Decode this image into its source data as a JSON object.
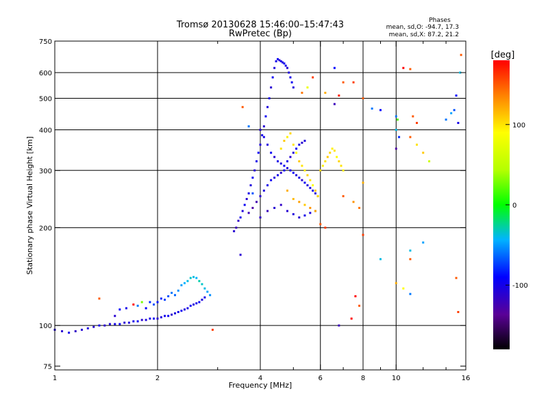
{
  "chart_data": {
    "type": "scatter",
    "title": "Tromsø 20130628 15:46:00–15:47:43",
    "subtitle": "RwPretec (Bp)",
    "phases": {
      "heading": "Phases",
      "line_o": "mean, sd,O: -94.7, 17.3",
      "line_x": "mean, sd,X:  87.2, 21.2"
    },
    "xlabel": "Frequency [MHz]",
    "ylabel": "Stationary phase Virtual Height [km]",
    "xscale": "log",
    "yscale": "log",
    "xlim": [
      1,
      16
    ],
    "ylim": [
      73,
      750
    ],
    "x_ticks": [
      {
        "value": 1,
        "label": "1"
      },
      {
        "value": 2,
        "label": "2"
      },
      {
        "value": 4,
        "label": "4"
      },
      {
        "value": 6,
        "label": "6"
      },
      {
        "value": 8,
        "label": "8"
      },
      {
        "value": 10,
        "label": "10"
      },
      {
        "value": 16,
        "label": "16"
      }
    ],
    "x_grid": [
      2,
      4,
      6,
      8,
      10
    ],
    "y_ticks": [
      {
        "value": 75,
        "label": "75"
      },
      {
        "value": 100,
        "label": "100"
      },
      {
        "value": 200,
        "label": "200"
      },
      {
        "value": 300,
        "label": "300"
      },
      {
        "value": 400,
        "label": "400"
      },
      {
        "value": 500,
        "label": "500"
      },
      {
        "value": 600,
        "label": "600"
      },
      {
        "value": 750,
        "label": "750"
      }
    ],
    "y_grid": [
      100,
      200,
      300,
      400,
      500,
      600
    ],
    "colorbar": {
      "label": "[deg]",
      "range": [
        -180,
        180
      ],
      "ticks": [
        {
          "value": 100,
          "label": "100"
        },
        {
          "value": 0,
          "label": "0"
        },
        {
          "value": -100,
          "label": "-100"
        }
      ]
    },
    "grid": true,
    "series": [
      {
        "points": [
          [
            1.0,
            97,
            -105
          ],
          [
            1.05,
            96,
            -110
          ],
          [
            1.1,
            95,
            -100
          ],
          [
            1.15,
            96,
            -115
          ],
          [
            1.2,
            97,
            -108
          ],
          [
            1.25,
            98,
            -105
          ],
          [
            1.3,
            99,
            -110
          ],
          [
            1.35,
            100,
            -100
          ],
          [
            1.4,
            100,
            -112
          ],
          [
            1.45,
            101,
            -105
          ],
          [
            1.5,
            101,
            -100
          ],
          [
            1.55,
            101,
            -95
          ],
          [
            1.6,
            102,
            -110
          ],
          [
            1.65,
            102,
            -105
          ],
          [
            1.7,
            103,
            -100
          ],
          [
            1.75,
            103,
            -95
          ],
          [
            1.8,
            104,
            -110
          ],
          [
            1.85,
            104,
            -105
          ],
          [
            1.9,
            105,
            -100
          ],
          [
            1.95,
            105,
            -95
          ],
          [
            2.0,
            105,
            -110
          ],
          [
            2.05,
            106,
            -105
          ],
          [
            2.1,
            107,
            -100
          ],
          [
            2.15,
            107,
            -95
          ],
          [
            2.2,
            108,
            -110
          ],
          [
            2.25,
            109,
            -105
          ],
          [
            2.3,
            110,
            -100
          ],
          [
            2.35,
            111,
            -95
          ],
          [
            2.4,
            112,
            -105
          ],
          [
            2.45,
            113,
            -100
          ],
          [
            2.5,
            115,
            -95
          ],
          [
            2.55,
            116,
            -105
          ],
          [
            2.6,
            117,
            -100
          ],
          [
            2.65,
            118,
            -95
          ],
          [
            2.7,
            120,
            -105
          ],
          [
            2.75,
            122,
            -100
          ]
        ]
      },
      {
        "points": [
          [
            1.35,
            121,
            150
          ],
          [
            1.5,
            107,
            -110
          ],
          [
            1.55,
            112,
            -90
          ],
          [
            1.62,
            113,
            -100
          ],
          [
            1.7,
            116,
            200
          ],
          [
            1.75,
            115,
            -60
          ],
          [
            1.8,
            118,
            30
          ],
          [
            1.85,
            113,
            -90
          ],
          [
            1.9,
            118,
            -80
          ],
          [
            1.95,
            116,
            -70
          ],
          [
            2.0,
            118,
            -85
          ],
          [
            2.05,
            121,
            -80
          ],
          [
            2.1,
            120,
            -75
          ],
          [
            2.15,
            123,
            -70
          ],
          [
            2.2,
            126,
            -60
          ],
          [
            2.25,
            124,
            -65
          ],
          [
            2.3,
            128,
            -55
          ],
          [
            2.35,
            133,
            -50
          ],
          [
            2.4,
            135,
            -45
          ],
          [
            2.45,
            137,
            -40
          ],
          [
            2.5,
            140,
            -35
          ],
          [
            2.55,
            141,
            -40
          ],
          [
            2.6,
            140,
            -45
          ],
          [
            2.65,
            137,
            -30
          ],
          [
            2.7,
            134,
            -35
          ],
          [
            2.75,
            130,
            -40
          ],
          [
            2.8,
            127,
            -50
          ],
          [
            2.85,
            124,
            -55
          ],
          [
            2.9,
            97,
            160
          ]
        ]
      },
      {
        "points": [
          [
            3.35,
            195,
            -110
          ],
          [
            3.4,
            200,
            -120
          ],
          [
            3.45,
            210,
            -115
          ],
          [
            3.5,
            215,
            -100
          ],
          [
            3.55,
            225,
            -105
          ],
          [
            3.6,
            235,
            -95
          ],
          [
            3.65,
            245,
            -110
          ],
          [
            3.7,
            255,
            -100
          ],
          [
            3.75,
            270,
            -105
          ],
          [
            3.8,
            285,
            -95
          ],
          [
            3.85,
            300,
            -110
          ],
          [
            3.9,
            320,
            -100
          ],
          [
            3.95,
            340,
            -95
          ],
          [
            4.0,
            360,
            -105
          ],
          [
            4.05,
            385,
            -100
          ],
          [
            4.1,
            410,
            -110
          ],
          [
            4.15,
            440,
            -95
          ],
          [
            4.2,
            470,
            -105
          ],
          [
            4.25,
            500,
            -100
          ],
          [
            4.3,
            540,
            -110
          ],
          [
            4.35,
            580,
            -95
          ],
          [
            4.4,
            620,
            -105
          ],
          [
            4.45,
            650,
            -100
          ],
          [
            4.5,
            660,
            -95
          ],
          [
            4.55,
            655,
            -110
          ],
          [
            4.6,
            650,
            -100
          ],
          [
            4.65,
            645,
            -105
          ],
          [
            4.7,
            640,
            -95
          ],
          [
            4.75,
            630,
            -100
          ],
          [
            4.8,
            620,
            -110
          ],
          [
            4.85,
            600,
            -105
          ],
          [
            4.9,
            580,
            -100
          ],
          [
            4.95,
            560,
            -95
          ],
          [
            5.0,
            540,
            -105
          ],
          [
            4.0,
            250,
            -110
          ],
          [
            4.1,
            260,
            -105
          ],
          [
            4.2,
            270,
            -100
          ],
          [
            4.3,
            280,
            -95
          ],
          [
            4.4,
            285,
            -105
          ],
          [
            4.5,
            290,
            -100
          ],
          [
            4.6,
            295,
            -110
          ],
          [
            4.7,
            300,
            -95
          ],
          [
            4.8,
            305,
            -105
          ],
          [
            4.9,
            300,
            -100
          ],
          [
            5.0,
            295,
            -95
          ],
          [
            5.1,
            290,
            -105
          ],
          [
            5.2,
            285,
            -100
          ],
          [
            5.3,
            280,
            -110
          ],
          [
            5.4,
            275,
            -95
          ],
          [
            5.5,
            270,
            -105
          ],
          [
            5.6,
            265,
            -100
          ],
          [
            5.7,
            260,
            -95
          ],
          [
            5.8,
            255,
            -105
          ],
          [
            5.9,
            250,
            -100
          ],
          [
            4.0,
            400,
            -110
          ],
          [
            4.1,
            380,
            -100
          ],
          [
            4.2,
            360,
            -105
          ],
          [
            4.3,
            340,
            -95
          ],
          [
            4.4,
            330,
            -110
          ],
          [
            4.5,
            320,
            -100
          ],
          [
            4.6,
            315,
            -105
          ],
          [
            4.7,
            310,
            -95
          ],
          [
            4.8,
            320,
            -100
          ],
          [
            4.9,
            330,
            -110
          ],
          [
            5.0,
            340,
            -105
          ],
          [
            5.1,
            350,
            -95
          ],
          [
            5.2,
            360,
            -100
          ],
          [
            5.3,
            365,
            -110
          ],
          [
            5.4,
            370,
            -105
          ],
          [
            3.7,
            222,
            -120
          ],
          [
            3.8,
            230,
            -130
          ],
          [
            3.9,
            240,
            -125
          ],
          [
            4.0,
            215,
            -115
          ],
          [
            4.2,
            225,
            -120
          ],
          [
            4.4,
            230,
            -110
          ],
          [
            4.6,
            235,
            -115
          ],
          [
            4.8,
            225,
            -110
          ],
          [
            5.0,
            220,
            -105
          ],
          [
            5.2,
            215,
            -110
          ],
          [
            5.4,
            218,
            -100
          ],
          [
            5.6,
            222,
            -105
          ],
          [
            5.8,
            225,
            -110
          ]
        ]
      },
      {
        "points": [
          [
            4.6,
            350,
            100
          ],
          [
            4.7,
            370,
            110
          ],
          [
            4.8,
            380,
            95
          ],
          [
            4.9,
            390,
            105
          ],
          [
            5.0,
            360,
            100
          ],
          [
            5.1,
            340,
            90
          ],
          [
            5.2,
            320,
            110
          ],
          [
            5.3,
            310,
            100
          ],
          [
            5.4,
            300,
            95
          ],
          [
            5.5,
            290,
            105
          ],
          [
            5.6,
            280,
            100
          ],
          [
            5.7,
            270,
            90
          ],
          [
            5.8,
            260,
            110
          ],
          [
            5.9,
            250,
            100
          ],
          [
            6.0,
            300,
            105
          ],
          [
            6.1,
            310,
            95
          ],
          [
            6.2,
            320,
            100
          ],
          [
            6.3,
            330,
            110
          ],
          [
            6.4,
            340,
            105
          ],
          [
            6.5,
            350,
            95
          ],
          [
            6.6,
            345,
            100
          ],
          [
            6.7,
            330,
            90
          ],
          [
            6.8,
            320,
            105
          ],
          [
            6.9,
            310,
            100
          ],
          [
            7.0,
            300,
            95
          ],
          [
            4.8,
            260,
            120
          ],
          [
            5.0,
            245,
            115
          ],
          [
            5.2,
            240,
            125
          ],
          [
            5.4,
            235,
            110
          ],
          [
            5.6,
            230,
            130
          ],
          [
            5.8,
            225,
            120
          ]
        ]
      },
      {
        "points": [
          [
            3.55,
            470,
            150
          ],
          [
            3.7,
            410,
            -60
          ],
          [
            3.8,
            255,
            -70
          ],
          [
            3.5,
            165,
            -110
          ],
          [
            5.3,
            520,
            140
          ],
          [
            5.5,
            540,
            80
          ],
          [
            5.7,
            580,
            160
          ],
          [
            6.2,
            520,
            120
          ],
          [
            6.6,
            480,
            -120
          ],
          [
            6.8,
            510,
            170
          ],
          [
            7.0,
            560,
            150
          ],
          [
            6.6,
            620,
            -90
          ],
          [
            7.5,
            560,
            160
          ],
          [
            8.0,
            500,
            150
          ],
          [
            6.8,
            100,
            -120
          ],
          [
            7.4,
            105,
            200
          ],
          [
            7.6,
            123,
            200
          ],
          [
            7.8,
            115,
            150
          ],
          [
            7.0,
            250,
            150
          ],
          [
            7.5,
            240,
            130
          ],
          [
            7.8,
            230,
            140
          ],
          [
            8.0,
            275,
            120
          ],
          [
            8.5,
            465,
            -60
          ],
          [
            9.0,
            460,
            -90
          ],
          [
            10.0,
            440,
            -60
          ],
          [
            10.1,
            430,
            20
          ],
          [
            10.0,
            400,
            -40
          ],
          [
            10.2,
            380,
            -80
          ],
          [
            10.0,
            350,
            -130
          ],
          [
            10.5,
            620,
            180
          ],
          [
            11.0,
            615,
            150
          ],
          [
            11.2,
            440,
            150
          ],
          [
            11.5,
            420,
            160
          ],
          [
            11.0,
            380,
            150
          ],
          [
            11.5,
            360,
            100
          ],
          [
            12.0,
            340,
            110
          ],
          [
            12.5,
            320,
            60
          ],
          [
            11.0,
            170,
            -40
          ],
          [
            12.0,
            180,
            -50
          ],
          [
            11.0,
            160,
            150
          ],
          [
            10.0,
            135,
            120
          ],
          [
            10.5,
            130,
            90
          ],
          [
            11.0,
            125,
            -60
          ],
          [
            14.0,
            430,
            -60
          ],
          [
            14.5,
            450,
            -50
          ],
          [
            14.8,
            460,
            -70
          ],
          [
            15.0,
            510,
            -90
          ],
          [
            15.2,
            420,
            -100
          ],
          [
            15.4,
            600,
            -40
          ],
          [
            15.5,
            680,
            150
          ],
          [
            15.0,
            140,
            150
          ],
          [
            15.2,
            110,
            160
          ],
          [
            9.0,
            160,
            -40
          ],
          [
            8.0,
            190,
            160
          ],
          [
            6.2,
            200,
            160
          ],
          [
            6.0,
            205,
            150
          ]
        ]
      }
    ]
  }
}
